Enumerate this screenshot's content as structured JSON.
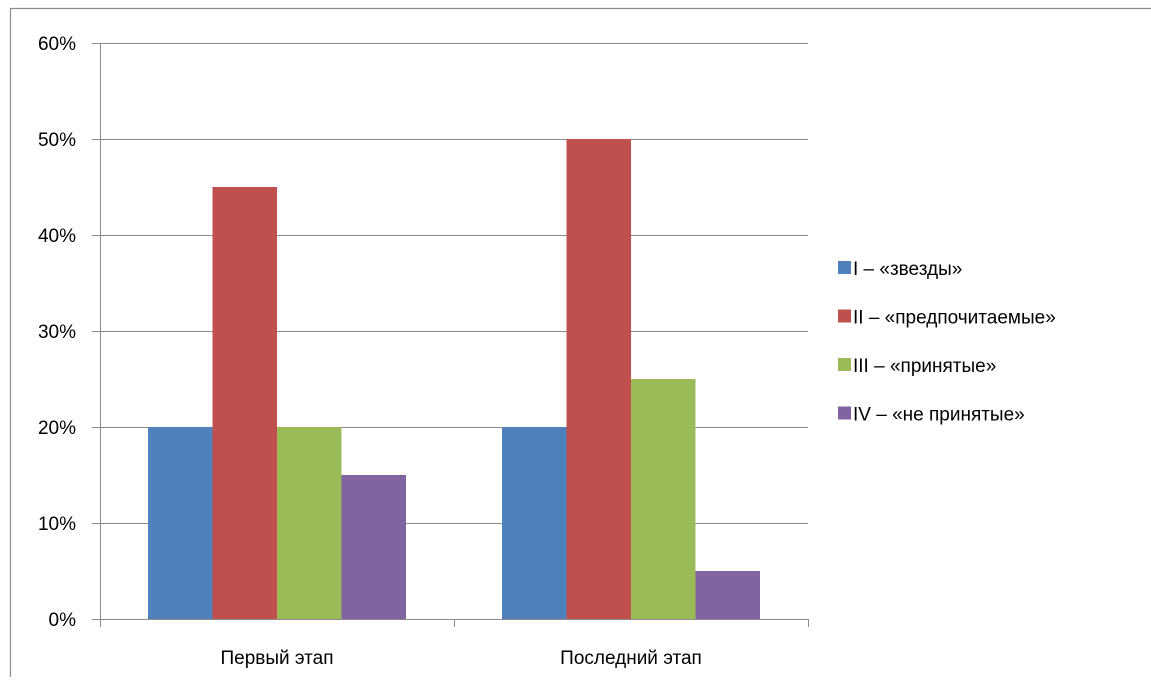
{
  "chart_data": {
    "type": "bar",
    "title": "",
    "xlabel": "",
    "ylabel": "",
    "categories": [
      "Первый этап",
      "Последний этап"
    ],
    "series": [
      {
        "name": "I – «звезды»",
        "values": [
          20,
          20
        ],
        "color": "#4F81BD"
      },
      {
        "name": "II – «предпочитаемые»",
        "values": [
          45,
          50
        ],
        "color": "#C0504D"
      },
      {
        "name": "III – «принятые»",
        "values": [
          20,
          25
        ],
        "color": "#9BBB59"
      },
      {
        "name": "IV – «не принятые»",
        "values": [
          15,
          5
        ],
        "color": "#8064A2"
      }
    ],
    "ylim": [
      0,
      60
    ],
    "yticks": [
      0,
      10,
      20,
      30,
      40,
      50,
      60
    ],
    "ytick_labels": [
      "0%",
      "10%",
      "20%",
      "30%",
      "40%",
      "50%",
      "60%"
    ],
    "grid": true,
    "legend_position": "right"
  }
}
